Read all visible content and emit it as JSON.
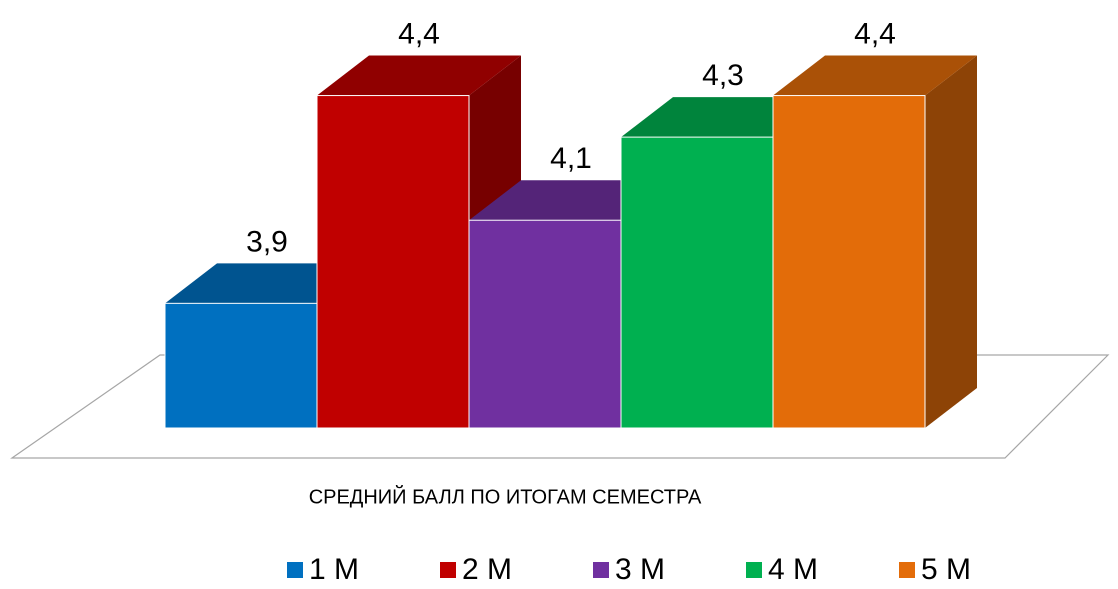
{
  "chart_data": {
    "type": "bar3d",
    "categories": [
      "СРЕДНИЙ БАЛЛ ПО ИТОГАМ СЕМЕСТРА"
    ],
    "series": [
      {
        "name": "1 M",
        "color": "#0070c0",
        "values": [
          3.9
        ],
        "value_labels": [
          "3,9"
        ]
      },
      {
        "name": "2 M",
        "color": "#c00000",
        "values": [
          4.4
        ],
        "value_labels": [
          "4,4"
        ]
      },
      {
        "name": "3 M",
        "color": "#7030a0",
        "values": [
          4.1
        ],
        "value_labels": [
          "4,1"
        ]
      },
      {
        "name": "4 M",
        "color": "#00b050",
        "values": [
          4.3
        ],
        "value_labels": [
          "4,3"
        ]
      },
      {
        "name": "5 M",
        "color": "#e36c09",
        "values": [
          4.4
        ],
        "value_labels": [
          "4,4"
        ]
      }
    ],
    "ylim": [
      3.6,
      4.5
    ],
    "legend": "bottom"
  }
}
